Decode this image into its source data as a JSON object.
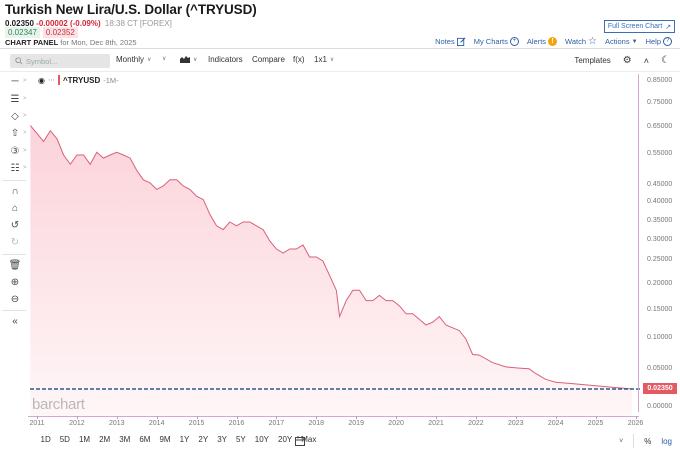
{
  "header": {
    "title": "Turkish New Lira/U.S. Dollar (^TRYUSD)",
    "last": "0.02350",
    "change": "-0.00002 (-0.09%)",
    "time": "18:38 CT [FOREX]",
    "bid": "0.02347",
    "ask": "0.02352",
    "panel_label": "CHART PANEL",
    "panel_date": "for Mon, Dec 8th, 2025",
    "fullscreen_label": "Full Screen Chart"
  },
  "actions": {
    "notes": "Notes",
    "my_charts": "My Charts",
    "alerts": "Alerts",
    "watch": "Watch",
    "actions": "Actions",
    "help": "Help"
  },
  "toolbar": {
    "symbol_placeholder": "Symbol...",
    "interval": "Monthly",
    "indicators": "Indicators",
    "compare": "Compare",
    "fx": "f(x)",
    "layout": "1x1",
    "templates": "Templates"
  },
  "legend": {
    "symbol": "^TRYUSD",
    "timeframe": "-1M-"
  },
  "watermark": "barchart",
  "price_tag": "0.02350",
  "ranges": [
    "1D",
    "5D",
    "1M",
    "2M",
    "3M",
    "6M",
    "9M",
    "1Y",
    "2Y",
    "3Y",
    "5Y",
    "10Y",
    "20Y",
    "Max"
  ],
  "bottom": {
    "percent": "%",
    "log": "log"
  },
  "colors": {
    "line": "#d9607a",
    "fill_top": "#fbd6dc",
    "fill_bottom": "#fff5f6",
    "price_tag": "#e35a63",
    "dashed_line": "#2b5d86",
    "up": "#2f8a55",
    "down": "#d0283a",
    "link": "#2d5fa6"
  },
  "chart_data": {
    "type": "area",
    "title": "Turkish New Lira/U.S. Dollar (^TRYUSD)",
    "xlabel": "",
    "ylabel": "",
    "interval": "Monthly",
    "scale": "log",
    "x_ticks": [
      "2011",
      "2012",
      "2013",
      "2014",
      "2015",
      "2016",
      "2017",
      "2018",
      "2019",
      "2020",
      "2021",
      "2022",
      "2023",
      "2024",
      "2025",
      "2026"
    ],
    "y_ticks": [
      "0.85000",
      "0.75000",
      "0.65000",
      "0.55000",
      "0.45000",
      "0.40000",
      "0.35000",
      "0.30000",
      "0.25000",
      "0.20000",
      "0.15000",
      "0.10000",
      "0.05000",
      "0.00000"
    ],
    "ylim": [
      0,
      0.85
    ],
    "last_value": 0.0235,
    "series": [
      {
        "name": "^TRYUSD",
        "x": [
          "2010-11",
          "2011-01",
          "2011-03",
          "2011-05",
          "2011-07",
          "2011-09",
          "2011-11",
          "2012-01",
          "2012-03",
          "2012-05",
          "2012-07",
          "2012-09",
          "2012-11",
          "2013-01",
          "2013-03",
          "2013-05",
          "2013-07",
          "2013-09",
          "2013-11",
          "2014-01",
          "2014-03",
          "2014-05",
          "2014-07",
          "2014-09",
          "2014-11",
          "2015-01",
          "2015-03",
          "2015-05",
          "2015-07",
          "2015-09",
          "2015-11",
          "2016-01",
          "2016-03",
          "2016-05",
          "2016-07",
          "2016-09",
          "2016-11",
          "2017-01",
          "2017-03",
          "2017-05",
          "2017-07",
          "2017-09",
          "2017-11",
          "2018-01",
          "2018-03",
          "2018-05",
          "2018-07",
          "2018-08",
          "2018-10",
          "2018-12",
          "2019-02",
          "2019-04",
          "2019-06",
          "2019-08",
          "2019-10",
          "2019-12",
          "2020-02",
          "2020-04",
          "2020-06",
          "2020-08",
          "2020-10",
          "2020-12",
          "2021-02",
          "2021-04",
          "2021-06",
          "2021-08",
          "2021-10",
          "2021-12",
          "2022-02",
          "2022-06",
          "2022-10",
          "2023-02",
          "2023-05",
          "2023-07",
          "2023-10",
          "2024-01",
          "2024-06",
          "2025-01",
          "2025-06",
          "2025-12"
        ],
        "values": [
          0.66,
          0.63,
          0.6,
          0.64,
          0.61,
          0.55,
          0.52,
          0.55,
          0.55,
          0.52,
          0.56,
          0.54,
          0.55,
          0.56,
          0.55,
          0.54,
          0.5,
          0.47,
          0.46,
          0.44,
          0.45,
          0.47,
          0.47,
          0.45,
          0.44,
          0.42,
          0.41,
          0.37,
          0.34,
          0.33,
          0.35,
          0.34,
          0.35,
          0.35,
          0.34,
          0.33,
          0.3,
          0.28,
          0.27,
          0.28,
          0.28,
          0.29,
          0.26,
          0.26,
          0.25,
          0.22,
          0.19,
          0.14,
          0.17,
          0.19,
          0.19,
          0.17,
          0.17,
          0.18,
          0.17,
          0.17,
          0.16,
          0.145,
          0.145,
          0.135,
          0.125,
          0.13,
          0.14,
          0.125,
          0.12,
          0.115,
          0.1,
          0.075,
          0.074,
          0.062,
          0.055,
          0.053,
          0.052,
          0.045,
          0.037,
          0.033,
          0.031,
          0.028,
          0.026,
          0.0235
        ]
      }
    ]
  }
}
